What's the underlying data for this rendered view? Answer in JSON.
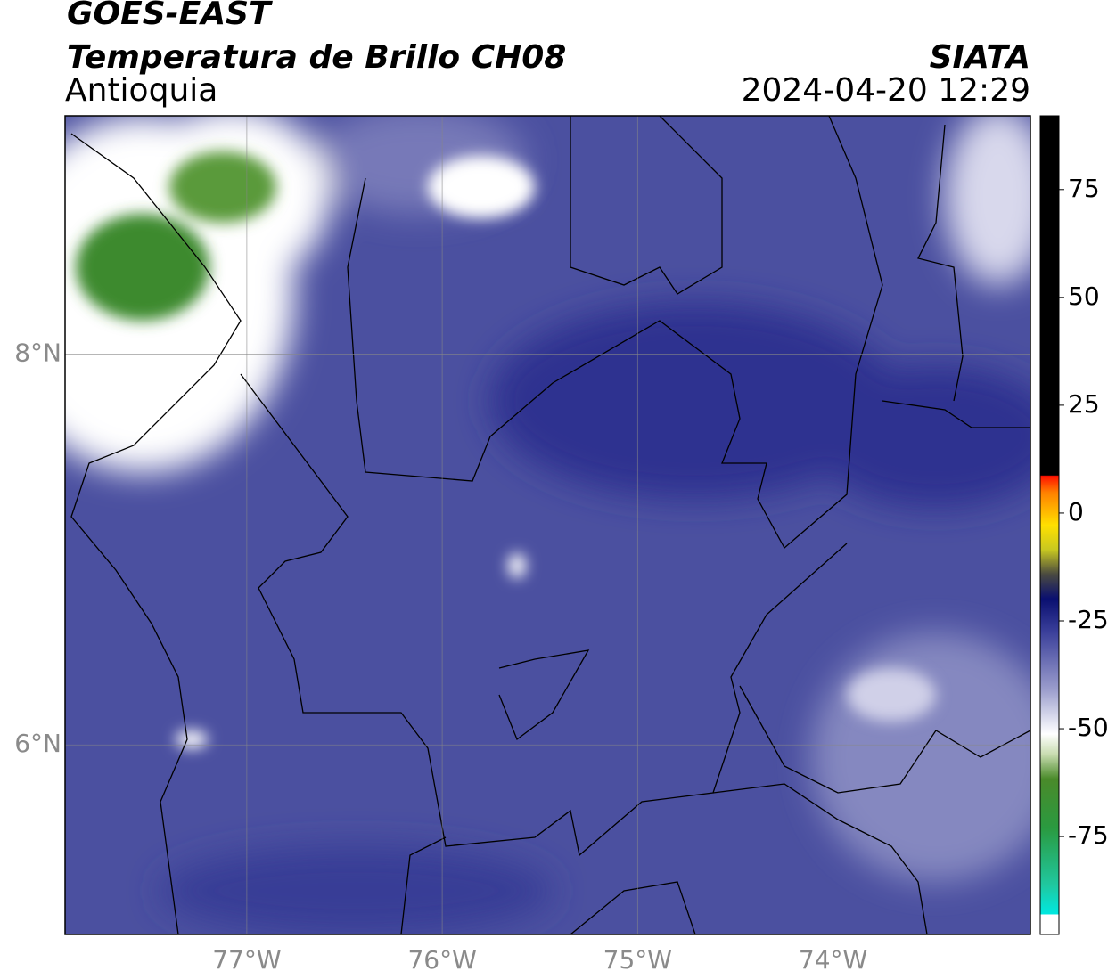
{
  "header": {
    "title": "GOES-EAST",
    "subtitle": "Temperatura de Brillo CH08",
    "region": "Antioquia",
    "source": "SIATA",
    "datetime": "2024-04-20 12:29"
  },
  "chart_data": {
    "type": "map",
    "xlim": [
      -77.93,
      -72.99
    ],
    "ylim": [
      5.03,
      9.22
    ],
    "xticks": [
      {
        "value": -77,
        "label": "77°W"
      },
      {
        "value": -76,
        "label": "76°W"
      },
      {
        "value": -75,
        "label": "75°W"
      },
      {
        "value": -74,
        "label": "74°W"
      }
    ],
    "yticks": [
      {
        "value": 6,
        "label": "6°N"
      },
      {
        "value": 8,
        "label": "8°N"
      }
    ],
    "grid": true,
    "colorbar": {
      "lim": [
        -97.7,
        92.1
      ],
      "ticks": [
        -75,
        -50,
        -25,
        0,
        25,
        50,
        75
      ]
    }
  }
}
